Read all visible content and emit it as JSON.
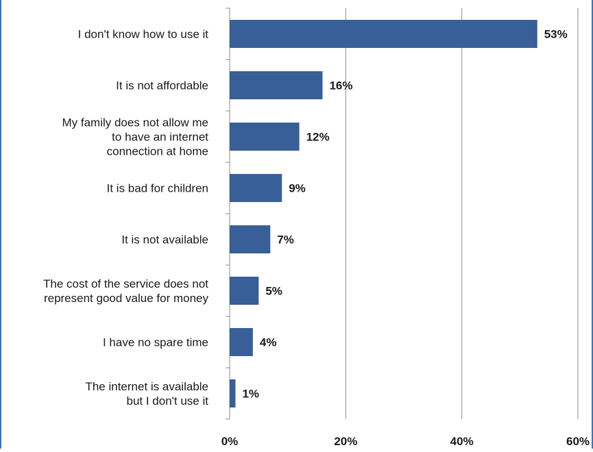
{
  "colors": {
    "bar": "#385f97",
    "grid": "#8a8a8a",
    "frame_edge": "#3b76b4"
  },
  "chart_data": {
    "type": "bar",
    "orientation": "horizontal",
    "categories": [
      [
        "I don't know how to use it"
      ],
      [
        "It is not affordable"
      ],
      [
        "My family does not allow me",
        "to have an internet",
        "connection at home"
      ],
      [
        "It is bad for children"
      ],
      [
        "It is not available"
      ],
      [
        "The cost of the service does not",
        "represent good value for money"
      ],
      [
        "I have no spare time"
      ],
      [
        "The internet is available",
        "but I don't use it"
      ]
    ],
    "values": [
      53,
      16,
      12,
      9,
      7,
      5,
      4,
      1
    ],
    "value_labels": [
      "53%",
      "16%",
      "12%",
      "9%",
      "7%",
      "5%",
      "4%",
      "1%"
    ],
    "xlim": [
      0,
      60
    ],
    "xticks": [
      0,
      20,
      40,
      60
    ],
    "xtick_labels": [
      "0%",
      "20%",
      "40%",
      "60%"
    ],
    "grid": true,
    "title": "",
    "xlabel": "",
    "ylabel": ""
  }
}
